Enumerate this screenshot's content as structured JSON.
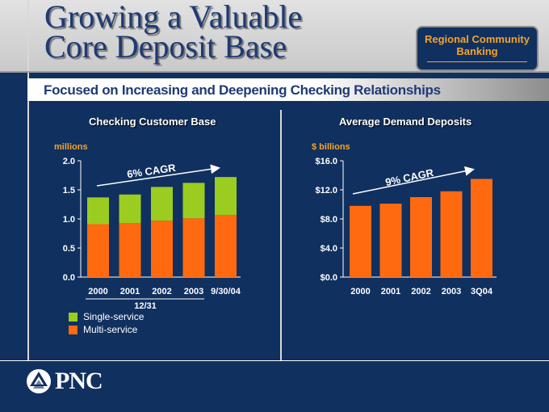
{
  "header": {
    "title_line1": "Growing a Valuable",
    "title_line2": "Core Deposit Base",
    "badge_line1": "Regional Community",
    "badge_line2": "Banking",
    "subtitle": "Focused on Increasing and Deepening Checking Relationships"
  },
  "colors": {
    "single": "#9acd1f",
    "multi": "#ff6a10",
    "accent": "#f5a327"
  },
  "chart_data": [
    {
      "type": "bar",
      "stacked": true,
      "title": "Checking Customer Base",
      "ylabel": "millions",
      "xlabel": "12/31",
      "categories": [
        "2000",
        "2001",
        "2002",
        "2003",
        "9/30/04"
      ],
      "series": [
        {
          "name": "Multi-service",
          "values": [
            0.91,
            0.93,
            0.97,
            1.01,
            1.07
          ]
        },
        {
          "name": "Single-service",
          "values": [
            0.46,
            0.49,
            0.58,
            0.61,
            0.65
          ]
        }
      ],
      "yticks": [
        "0.0",
        "0.5",
        "1.0",
        "1.5",
        "2.0"
      ],
      "ylim": [
        0,
        2.0
      ],
      "annotation": "6% CAGR"
    },
    {
      "type": "bar",
      "title": "Average Demand Deposits",
      "ylabel": "$ billions",
      "categories": [
        "2000",
        "2001",
        "2002",
        "2003",
        "3Q04"
      ],
      "values": [
        9.8,
        10.1,
        11.0,
        11.8,
        13.5
      ],
      "yticks": [
        "$0.0",
        "$4.0",
        "$8.0",
        "$12.0",
        "$16.0"
      ],
      "ylim": [
        0,
        16
      ],
      "annotation": "9% CAGR"
    }
  ],
  "legend": [
    {
      "label": "Single-service",
      "color": "#9acd1f"
    },
    {
      "label": "Multi-service",
      "color": "#ff6a10"
    }
  ],
  "footer": {
    "logo_text": "PNC"
  }
}
